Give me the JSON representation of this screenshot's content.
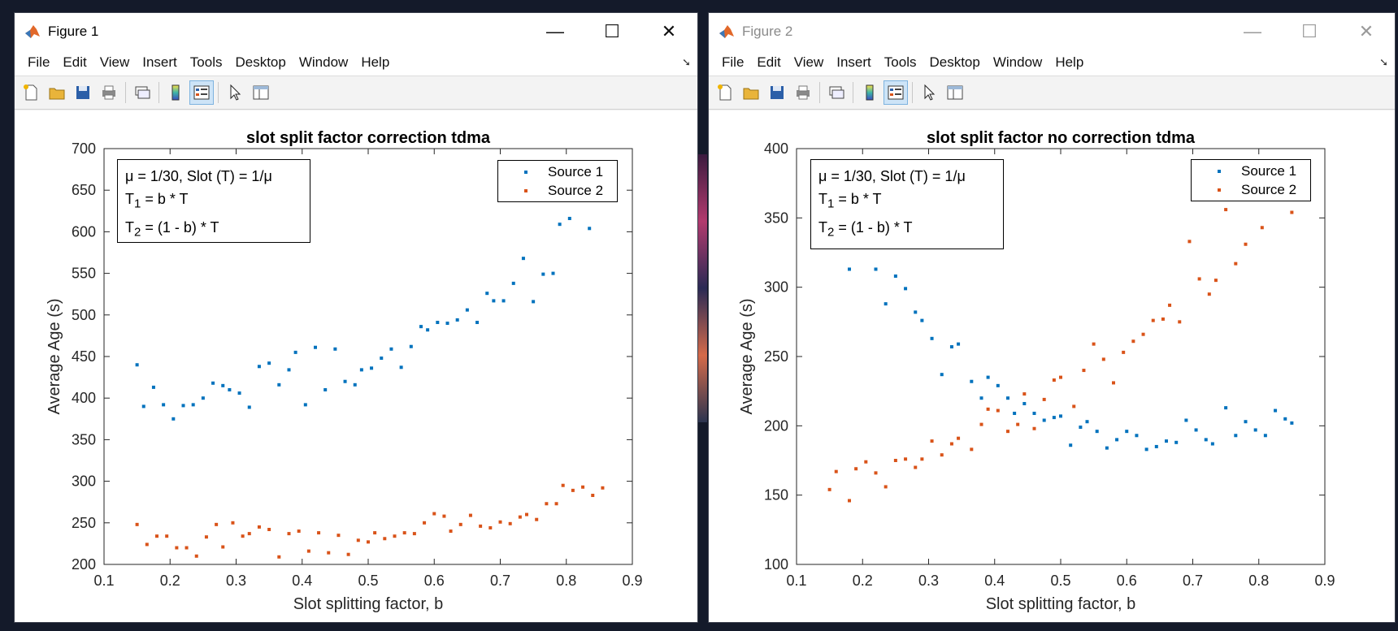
{
  "colors": {
    "series1": "#0072BD",
    "series2": "#D95319"
  },
  "menu": [
    "File",
    "Edit",
    "View",
    "Insert",
    "Tools",
    "Desktop",
    "Window",
    "Help"
  ],
  "window_controls": {
    "minimize": "—",
    "maximize": "☐",
    "close": "✕"
  },
  "toolbar_icons": [
    "new-figure-icon",
    "open-file-icon",
    "save-icon",
    "print-icon",
    "link-plot-icon",
    "colorbar-icon",
    "legend-icon",
    "pointer-icon",
    "property-inspector-icon"
  ],
  "figure1": {
    "window_title": "Figure 1",
    "annotation": {
      "line1": "μ = 1/30, Slot (T) = 1/μ",
      "line2_main": "T",
      "line2_sub": "1",
      "line2_rest": " = b * T",
      "line3_main": "T",
      "line3_sub": "2",
      "line3_rest": " = (1 - b) * T"
    },
    "chart_data": {
      "type": "scatter",
      "title": "slot split factor correction tdma",
      "xlabel": "Slot splitting factor, b",
      "ylabel": "Average Age (s)",
      "xlim": [
        0.1,
        0.9
      ],
      "ylim": [
        200,
        700
      ],
      "xticks": [
        0.1,
        0.2,
        0.3,
        0.4,
        0.5,
        0.6,
        0.7,
        0.8,
        0.9
      ],
      "yticks": [
        200,
        250,
        300,
        350,
        400,
        450,
        500,
        550,
        600,
        650,
        700
      ],
      "legend_position": "top-right",
      "series": [
        {
          "name": "Source 1",
          "points": [
            [
              0.15,
              440
            ],
            [
              0.16,
              390
            ],
            [
              0.175,
              413
            ],
            [
              0.19,
              392
            ],
            [
              0.205,
              375
            ],
            [
              0.22,
              391
            ],
            [
              0.235,
              392
            ],
            [
              0.25,
              400
            ],
            [
              0.265,
              418
            ],
            [
              0.28,
              415
            ],
            [
              0.29,
              410
            ],
            [
              0.305,
              406
            ],
            [
              0.32,
              389
            ],
            [
              0.335,
              438
            ],
            [
              0.35,
              442
            ],
            [
              0.365,
              416
            ],
            [
              0.38,
              434
            ],
            [
              0.39,
              455
            ],
            [
              0.405,
              392
            ],
            [
              0.42,
              461
            ],
            [
              0.435,
              410
            ],
            [
              0.45,
              459
            ],
            [
              0.465,
              420
            ],
            [
              0.48,
              416
            ],
            [
              0.49,
              434
            ],
            [
              0.505,
              436
            ],
            [
              0.52,
              448
            ],
            [
              0.535,
              459
            ],
            [
              0.55,
              437
            ],
            [
              0.565,
              462
            ],
            [
              0.58,
              486
            ],
            [
              0.59,
              482
            ],
            [
              0.605,
              491
            ],
            [
              0.62,
              490
            ],
            [
              0.635,
              494
            ],
            [
              0.65,
              506
            ],
            [
              0.665,
              491
            ],
            [
              0.68,
              526
            ],
            [
              0.69,
              517
            ],
            [
              0.705,
              517
            ],
            [
              0.72,
              538
            ],
            [
              0.735,
              568
            ],
            [
              0.75,
              516
            ],
            [
              0.765,
              549
            ],
            [
              0.78,
              550
            ],
            [
              0.79,
              609
            ],
            [
              0.805,
              616
            ],
            [
              0.835,
              604
            ]
          ]
        },
        {
          "name": "Source 2",
          "points": [
            [
              0.15,
              248
            ],
            [
              0.165,
              224
            ],
            [
              0.18,
              234
            ],
            [
              0.195,
              234
            ],
            [
              0.21,
              220
            ],
            [
              0.225,
              220
            ],
            [
              0.24,
              210
            ],
            [
              0.255,
              233
            ],
            [
              0.27,
              248
            ],
            [
              0.28,
              221
            ],
            [
              0.295,
              250
            ],
            [
              0.31,
              234
            ],
            [
              0.32,
              237
            ],
            [
              0.335,
              245
            ],
            [
              0.35,
              242
            ],
            [
              0.365,
              209
            ],
            [
              0.38,
              237
            ],
            [
              0.395,
              240
            ],
            [
              0.41,
              216
            ],
            [
              0.425,
              238
            ],
            [
              0.44,
              214
            ],
            [
              0.455,
              235
            ],
            [
              0.47,
              212
            ],
            [
              0.485,
              229
            ],
            [
              0.5,
              227
            ],
            [
              0.51,
              238
            ],
            [
              0.525,
              231
            ],
            [
              0.54,
              234
            ],
            [
              0.555,
              238
            ],
            [
              0.57,
              237
            ],
            [
              0.585,
              250
            ],
            [
              0.6,
              261
            ],
            [
              0.615,
              258
            ],
            [
              0.625,
              240
            ],
            [
              0.64,
              248
            ],
            [
              0.655,
              259
            ],
            [
              0.67,
              246
            ],
            [
              0.685,
              244
            ],
            [
              0.7,
              251
            ],
            [
              0.715,
              249
            ],
            [
              0.73,
              257
            ],
            [
              0.74,
              260
            ],
            [
              0.755,
              254
            ],
            [
              0.77,
              273
            ],
            [
              0.785,
              273
            ],
            [
              0.795,
              295
            ],
            [
              0.81,
              289
            ],
            [
              0.825,
              293
            ],
            [
              0.84,
              283
            ],
            [
              0.855,
              292
            ]
          ]
        }
      ]
    }
  },
  "figure2": {
    "window_title": "Figure 2",
    "annotation": {
      "line1": "μ = 1/30, Slot (T) = 1/μ",
      "line2_main": "T",
      "line2_sub": "1",
      "line2_rest": " = b * T",
      "line3_main": "T",
      "line3_sub": "2",
      "line3_rest": " = (1 - b) * T"
    },
    "chart_data": {
      "type": "scatter",
      "title": "slot split factor no correction tdma",
      "xlabel": "Slot splitting factor, b",
      "ylabel": "Average Age (s)",
      "xlim": [
        0.1,
        0.9
      ],
      "ylim": [
        100,
        400
      ],
      "xticks": [
        0.1,
        0.2,
        0.3,
        0.4,
        0.5,
        0.6,
        0.7,
        0.8,
        0.9
      ],
      "yticks": [
        100,
        150,
        200,
        250,
        300,
        350,
        400
      ],
      "legend_position": "top-right",
      "series": [
        {
          "name": "Source 1",
          "points": [
            [
              0.18,
              313
            ],
            [
              0.22,
              313
            ],
            [
              0.235,
              288
            ],
            [
              0.25,
              308
            ],
            [
              0.265,
              299
            ],
            [
              0.28,
              282
            ],
            [
              0.29,
              276
            ],
            [
              0.305,
              263
            ],
            [
              0.32,
              237
            ],
            [
              0.335,
              257
            ],
            [
              0.345,
              259
            ],
            [
              0.365,
              232
            ],
            [
              0.38,
              220
            ],
            [
              0.39,
              235
            ],
            [
              0.405,
              229
            ],
            [
              0.42,
              220
            ],
            [
              0.43,
              209
            ],
            [
              0.445,
              216
            ],
            [
              0.46,
              209
            ],
            [
              0.475,
              204
            ],
            [
              0.49,
              206
            ],
            [
              0.5,
              207
            ],
            [
              0.515,
              186
            ],
            [
              0.53,
              199
            ],
            [
              0.54,
              203
            ],
            [
              0.555,
              196
            ],
            [
              0.57,
              184
            ],
            [
              0.585,
              190
            ],
            [
              0.6,
              196
            ],
            [
              0.615,
              193
            ],
            [
              0.63,
              183
            ],
            [
              0.645,
              185
            ],
            [
              0.66,
              189
            ],
            [
              0.675,
              188
            ],
            [
              0.69,
              204
            ],
            [
              0.705,
              197
            ],
            [
              0.72,
              190
            ],
            [
              0.73,
              187
            ],
            [
              0.75,
              213
            ],
            [
              0.765,
              193
            ],
            [
              0.78,
              203
            ],
            [
              0.795,
              197
            ],
            [
              0.81,
              193
            ],
            [
              0.825,
              211
            ],
            [
              0.84,
              205
            ],
            [
              0.85,
              202
            ]
          ]
        },
        {
          "name": "Source 2",
          "points": [
            [
              0.15,
              154
            ],
            [
              0.16,
              167
            ],
            [
              0.18,
              146
            ],
            [
              0.19,
              169
            ],
            [
              0.205,
              174
            ],
            [
              0.22,
              166
            ],
            [
              0.235,
              156
            ],
            [
              0.25,
              175
            ],
            [
              0.265,
              176
            ],
            [
              0.28,
              170
            ],
            [
              0.29,
              176
            ],
            [
              0.305,
              189
            ],
            [
              0.32,
              179
            ],
            [
              0.335,
              187
            ],
            [
              0.345,
              191
            ],
            [
              0.365,
              183
            ],
            [
              0.38,
              201
            ],
            [
              0.39,
              212
            ],
            [
              0.405,
              211
            ],
            [
              0.42,
              196
            ],
            [
              0.435,
              201
            ],
            [
              0.445,
              223
            ],
            [
              0.46,
              198
            ],
            [
              0.475,
              219
            ],
            [
              0.49,
              233
            ],
            [
              0.5,
              235
            ],
            [
              0.52,
              214
            ],
            [
              0.535,
              240
            ],
            [
              0.55,
              259
            ],
            [
              0.565,
              248
            ],
            [
              0.58,
              231
            ],
            [
              0.595,
              253
            ],
            [
              0.61,
              261
            ],
            [
              0.625,
              266
            ],
            [
              0.64,
              276
            ],
            [
              0.655,
              277
            ],
            [
              0.665,
              287
            ],
            [
              0.68,
              275
            ],
            [
              0.695,
              333
            ],
            [
              0.71,
              306
            ],
            [
              0.725,
              295
            ],
            [
              0.735,
              305
            ],
            [
              0.75,
              356
            ],
            [
              0.765,
              317
            ],
            [
              0.78,
              331
            ],
            [
              0.805,
              343
            ],
            [
              0.85,
              354
            ]
          ]
        }
      ]
    }
  }
}
